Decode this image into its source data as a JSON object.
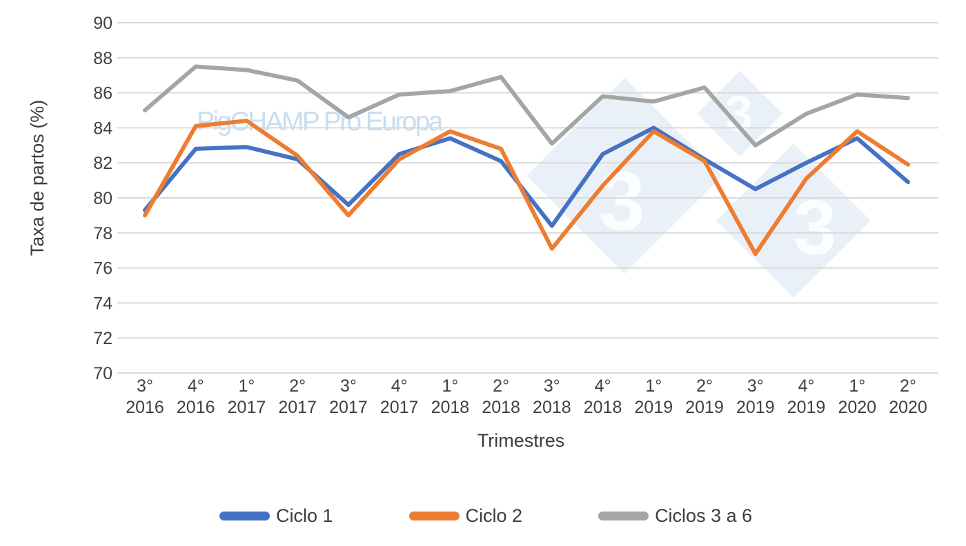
{
  "watermark": {
    "text": "PigCHAMP Pro Europa",
    "logo_digits": [
      "3",
      "3",
      "3"
    ]
  },
  "chart_data": {
    "type": "line",
    "title": "",
    "xlabel": "Trimestres",
    "ylabel": "Taxa de partos (%)",
    "ylim": [
      70,
      90
    ],
    "ytick_step": 2,
    "grid": true,
    "legend_position": "bottom",
    "categories": [
      "3° 2016",
      "4° 2016",
      "1° 2017",
      "2° 2017",
      "3° 2017",
      "4° 2017",
      "1° 2018",
      "2° 2018",
      "3° 2018",
      "4° 2018",
      "1° 2019",
      "2° 2019",
      "3° 2019",
      "4° 2019",
      "1° 2020",
      "2° 2020"
    ],
    "series": [
      {
        "name": "Ciclo 1",
        "color": "#4472C4",
        "values": [
          79.3,
          82.8,
          82.9,
          82.2,
          79.6,
          82.5,
          83.4,
          82.1,
          78.4,
          82.5,
          84.0,
          82.2,
          80.5,
          82.0,
          83.4,
          80.9
        ]
      },
      {
        "name": "Ciclo 2",
        "color": "#ED7D31",
        "values": [
          79.0,
          84.1,
          84.4,
          82.4,
          79.0,
          82.2,
          83.8,
          82.8,
          77.1,
          80.7,
          83.8,
          82.1,
          76.8,
          81.1,
          83.8,
          81.9
        ]
      },
      {
        "name": "Ciclos 3 a 6",
        "color": "#A5A5A5",
        "values": [
          85.0,
          87.5,
          87.3,
          86.7,
          84.6,
          85.9,
          86.1,
          86.9,
          83.1,
          85.8,
          85.5,
          86.3,
          83.0,
          84.8,
          85.9,
          85.7
        ]
      }
    ],
    "colors": {
      "axis_text": "#404040",
      "gridline": "#D9D9D9",
      "watermark_text": "#C7DDF1",
      "watermark_diamond": "#E9F0F8"
    }
  }
}
